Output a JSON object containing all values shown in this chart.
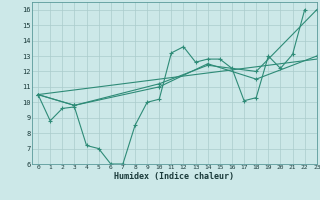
{
  "title": "",
  "xlabel": "Humidex (Indice chaleur)",
  "xlim": [
    -0.5,
    23
  ],
  "ylim": [
    6,
    16.5
  ],
  "xticks": [
    0,
    1,
    2,
    3,
    4,
    5,
    6,
    7,
    8,
    9,
    10,
    11,
    12,
    13,
    14,
    15,
    16,
    17,
    18,
    19,
    20,
    21,
    22,
    23
  ],
  "yticks": [
    6,
    7,
    8,
    9,
    10,
    11,
    12,
    13,
    14,
    15,
    16
  ],
  "line_color": "#2e8b77",
  "bg_color": "#cce8e8",
  "grid_color": "#aacccc",
  "lines": [
    {
      "x": [
        0,
        1,
        2,
        3,
        4,
        5,
        6,
        7,
        7,
        8,
        9,
        10,
        11,
        12,
        13,
        14,
        15,
        16,
        17,
        18,
        19,
        20,
        21,
        22
      ],
      "y": [
        10.5,
        8.8,
        9.6,
        9.7,
        7.2,
        7.0,
        6.0,
        6.0,
        6.0,
        8.5,
        10.0,
        10.2,
        13.2,
        13.6,
        12.6,
        12.8,
        12.8,
        12.2,
        10.1,
        10.3,
        13.0,
        12.2,
        13.1,
        16.0
      ],
      "has_markers": true
    },
    {
      "x": [
        0,
        3,
        10,
        14,
        18,
        23
      ],
      "y": [
        10.5,
        9.8,
        11.0,
        12.5,
        11.5,
        13.0
      ],
      "has_markers": true
    },
    {
      "x": [
        0,
        3,
        10,
        14,
        18,
        23
      ],
      "y": [
        10.5,
        9.8,
        11.2,
        12.4,
        12.0,
        16.0
      ],
      "has_markers": true
    },
    {
      "x": [
        0,
        23
      ],
      "y": [
        10.5,
        12.8
      ],
      "has_markers": false
    }
  ]
}
